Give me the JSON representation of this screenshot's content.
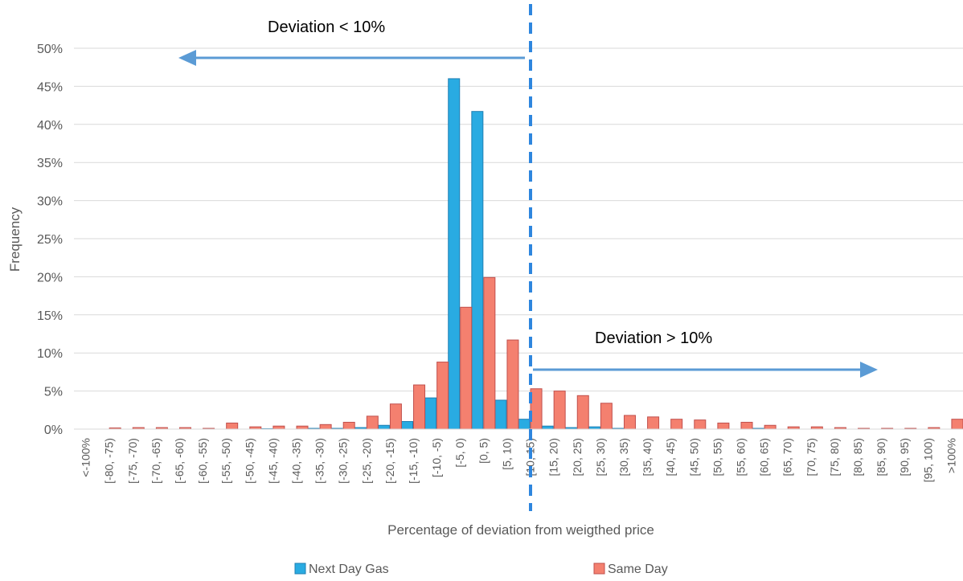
{
  "chart_data": {
    "type": "bar",
    "title": "",
    "xlabel": "Percentage of deviation from  weigthed price",
    "ylabel": "Frequency",
    "ylim": [
      0,
      50
    ],
    "ytick_labels": [
      "0%",
      "5%",
      "10%",
      "15%",
      "20%",
      "25%",
      "30%",
      "35%",
      "40%",
      "45%",
      "50%"
    ],
    "grid": true,
    "legend_position": "bottom",
    "categories": [
      "<-100%",
      "[-80, -75)",
      "[-75, -70)",
      "[-70, -65)",
      "[-65, -60)",
      "[-60, -55)",
      "[-55, -50)",
      "[-50, -45)",
      "[-45, -40)",
      "[-40, -35)",
      "[-35, -30)",
      "[-30, -25)",
      "[-25, -20)",
      "[-20, -15)",
      "[-15, -10)",
      "[-10, -5)",
      "[-5, 0)",
      "[0, 5)",
      "[5, 10)",
      "[10, 15)",
      "[15, 20)",
      "[20, 25)",
      "[25, 30)",
      "[30, 35)",
      "[35, 40)",
      "[40, 45)",
      "[45, 50)",
      "[50, 55)",
      "[55, 60)",
      "[60, 65)",
      "[65, 70)",
      "[70, 75)",
      "[75, 80)",
      "[80, 85)",
      "[85, 90)",
      "[90, 95)",
      "[95, 100)",
      ">100%"
    ],
    "series": [
      {
        "name": "Next Day Gas",
        "color": "#29ABE2",
        "values": [
          0,
          0,
          0,
          0,
          0,
          0,
          0,
          0,
          0.05,
          0,
          0.1,
          0.1,
          0.2,
          0.5,
          1.0,
          4.1,
          46.0,
          41.7,
          3.8,
          1.3,
          0.4,
          0.2,
          0.3,
          0.1,
          0,
          0,
          0,
          0,
          0,
          0.1,
          0,
          0,
          0,
          0,
          0,
          0,
          0,
          0
        ]
      },
      {
        "name": "Same Day",
        "color": "#F4806F",
        "values": [
          0,
          0.15,
          0.2,
          0.2,
          0.2,
          0.1,
          0.8,
          0.3,
          0.4,
          0.4,
          0.6,
          0.9,
          1.7,
          3.3,
          5.8,
          8.8,
          16.0,
          19.9,
          11.7,
          5.3,
          5.0,
          4.4,
          3.4,
          1.8,
          1.6,
          1.3,
          1.2,
          0.8,
          0.9,
          0.5,
          0.3,
          0.3,
          0.2,
          0.1,
          0.1,
          0.1,
          0.2,
          1.3
        ]
      }
    ],
    "annotations": {
      "left": "Deviation < 10%",
      "right": "Deviation > 10%"
    },
    "annotation_color": "#5B9BD5",
    "divider_color": "#2E86DE"
  }
}
